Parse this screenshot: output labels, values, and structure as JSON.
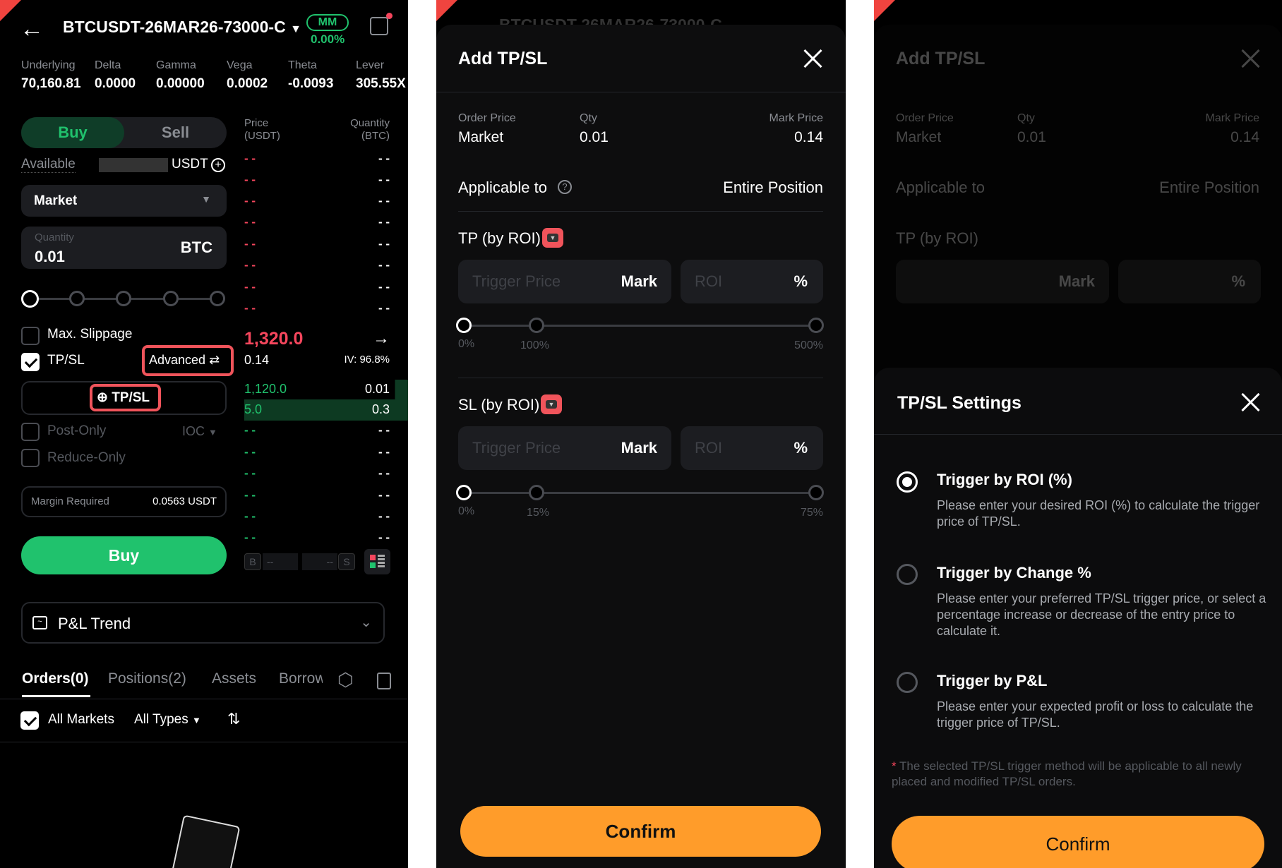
{
  "trade": {
    "symbol": "BTCUSDT-26MAR26-73000-C",
    "mm_label": "MM",
    "mm_value": "0.00%",
    "stats": [
      {
        "label": "Underlying",
        "value": "70,160.81"
      },
      {
        "label": "Delta",
        "value": "0.0000"
      },
      {
        "label": "Gamma",
        "value": "0.00000"
      },
      {
        "label": "Vega",
        "value": "0.0002"
      },
      {
        "label": "Theta",
        "value": "-0.0093"
      },
      {
        "label": "Lever",
        "value": "305.55X"
      }
    ],
    "buy_tab": "Buy",
    "sell_tab": "Sell",
    "available_label": "Available",
    "available_unit": "USDT",
    "order_type": "Market",
    "quantity_label": "Quantity",
    "quantity_value": "0.01",
    "quantity_unit": "BTC",
    "max_slippage": "Max. Slippage",
    "tpsl_label": "TP/SL",
    "advanced": "Advanced",
    "add_tpsl": "TP/SL",
    "post_only": "Post-Only",
    "ioc": "IOC",
    "reduce_only": "Reduce-Only",
    "margin_label": "Margin Required",
    "margin_value": "0.0563 USDT",
    "buy_button": "Buy",
    "book": {
      "price_header": "Price\n(USDT)",
      "qty_header": "Quantity\n(BTC)",
      "empty": "- -",
      "last_price": "1,320.0",
      "mark": "0.14",
      "iv": "IV: 96.8%",
      "bids": [
        {
          "price": "1,120.0",
          "qty": "0.01"
        },
        {
          "price": "5.0",
          "qty": "0.3"
        }
      ],
      "b": "B",
      "s": "S",
      "dash": "--"
    },
    "pnl_trend": "P&L Trend",
    "tabs": [
      "Orders(0)",
      "Positions(2)",
      "Assets",
      "Borrow"
    ],
    "all_markets": "All Markets",
    "all_types": "All Types"
  },
  "add_tpsl": {
    "title": "Add TP/SL",
    "order_price_label": "Order Price",
    "order_price": "Market",
    "qty_label": "Qty",
    "qty": "0.01",
    "mark_price_label": "Mark Price",
    "mark_price": "0.14",
    "applicable_label": "Applicable to",
    "applicable_value": "Entire Position",
    "tp": {
      "label": "TP (by ROI)",
      "trigger_placeholder": "Trigger Price",
      "mark": "Mark",
      "roi_placeholder": "ROI",
      "pct": "%",
      "ticks": [
        "0%",
        "100%",
        "500%"
      ]
    },
    "sl": {
      "label": "SL (by ROI)",
      "trigger_placeholder": "Trigger Price",
      "mark": "Mark",
      "roi_placeholder": "ROI",
      "pct": "%",
      "ticks": [
        "0%",
        "15%",
        "75%"
      ]
    },
    "confirm": "Confirm"
  },
  "settings": {
    "title": "TP/SL Settings",
    "options": [
      {
        "title": "Trigger by ROI (%)",
        "desc": "Please enter your desired ROI (%) to calculate the trigger price of TP/SL.",
        "selected": true
      },
      {
        "title": "Trigger by Change %",
        "desc": "Please enter your preferred TP/SL trigger price, or select a percentage increase or decrease of the entry price to calculate it.",
        "selected": false
      },
      {
        "title": "Trigger by P&L",
        "desc": "Please enter your expected profit or loss to calculate the trigger price of TP/SL.",
        "selected": false
      }
    ],
    "note_star": "*",
    "note": "The selected TP/SL trigger method will be applicable to all newly placed and modified TP/SL orders.",
    "confirm": "Confirm"
  },
  "colors": {
    "buy": "#20c26d",
    "sell": "#f6465d",
    "confirm": "#ff9c2a",
    "highlight": "#f0545b"
  }
}
